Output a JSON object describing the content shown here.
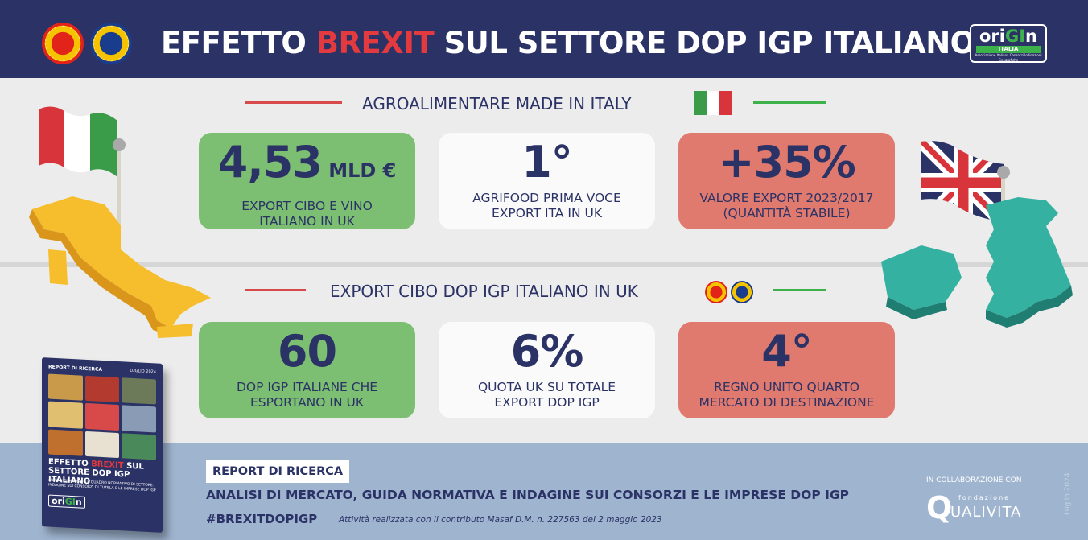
{
  "header": {
    "title_pre": "EFFETTO ",
    "title_highlight": "BREXIT",
    "title_post": " SUL SETTORE DOP IGP ITALIANO",
    "logo": {
      "word_pre": "ori",
      "word_gi": "GI",
      "word_post": "n",
      "sub": "ITALIA",
      "tagline": "Associazione Italiana Consorzi Indicazioni Geografiche"
    }
  },
  "section1": {
    "title": "AGROALIMENTARE MADE IN ITALY",
    "cards": [
      {
        "value": "4,53",
        "unit": " MLD €",
        "desc_line1": "EXPORT CIBO E VINO",
        "desc_line2": "ITALIANO IN UK"
      },
      {
        "value": "1°",
        "unit": "",
        "desc_line1": "AGRIFOOD PRIMA VOCE",
        "desc_line2": "EXPORT ITA IN UK"
      },
      {
        "value": "+35%",
        "unit": "",
        "desc_line1": "VALORE EXPORT 2023/2017",
        "desc_line2": "(QUANTITÀ STABILE)"
      }
    ]
  },
  "section2": {
    "title": "EXPORT CIBO DOP IGP ITALIANO IN UK",
    "cards": [
      {
        "value": "60",
        "unit": "",
        "desc_line1": "DOP IGP ITALIANE CHE",
        "desc_line2": "ESPORTANO IN UK"
      },
      {
        "value": "6%",
        "unit": "",
        "desc_line1": "QUOTA UK SU TOTALE",
        "desc_line2": "EXPORT DOP IGP"
      },
      {
        "value": "4°",
        "unit": "",
        "desc_line1": "REGNO UNITO QUARTO",
        "desc_line2": "MERCATO DI DESTINAZIONE"
      }
    ]
  },
  "book": {
    "top_label": "REPORT DI RICERCA",
    "date": "LUGLIO 2024",
    "title_pre": "EFFETTO ",
    "title_highlight": "BREXIT",
    "title_post": " SUL SETTORE DOP IGP ITALIANO",
    "subtitle": "ANALISI DI MERCATO E QUADRO NORMATIVO DI SETTORE. INDAGINE SUI CONSORZI DI TUTELA E LE IMPRESE DOP IGP"
  },
  "footer": {
    "report_label": "REPORT DI RICERCA",
    "subtitle": "ANALISI DI MERCATO, GUIDA NORMATIVA E INDAGINE SUI CONSORZI E LE IMPRESE DOP IGP",
    "hashtag": "#BREXITDOPIGP",
    "credit": "Attività realizzata con il contributo Masaf D.M. n. 227563 del 2 maggio 2023",
    "collab_label": "IN COLLABORAZIONE CON",
    "partner_fond": "fondazione",
    "partner_name": "UALIVITA",
    "date": "Luglio 2024"
  },
  "colors": {
    "navy": "#2b3266",
    "green_card": "#7dbf72",
    "red_card": "#e07a6e",
    "footer_blue": "#9fb4cf",
    "brexit_red": "#e23a3f"
  },
  "icons": [
    "dop-seal-icon",
    "igp-seal-icon",
    "italian-flag-icon",
    "italy-map-icon",
    "uk-map-icon",
    "uk-flag-icon"
  ]
}
